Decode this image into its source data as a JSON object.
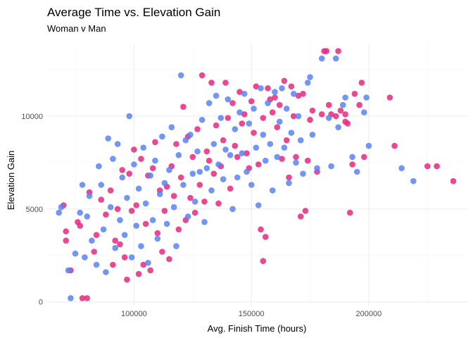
{
  "chart_data": {
    "type": "scatter",
    "title": "Average Time vs. Elevation Gain",
    "subtitle": "Woman v Man",
    "xlabel": "Avg. Finish Time (hours)",
    "ylabel": "Elevation Gain",
    "xlim": [
      63000,
      242000
    ],
    "ylim": [
      -200,
      13900
    ],
    "x_ticks": [
      100000,
      150000,
      200000
    ],
    "x_tick_labels": [
      "100000",
      "150000",
      "200000"
    ],
    "y_ticks": [
      0,
      5000,
      10000
    ],
    "y_tick_labels": [
      "0",
      "5000",
      "10000"
    ],
    "grid": true,
    "legend": "none",
    "colors": {
      "Woman": "#e8287f",
      "Man": "#5b84f5"
    },
    "series": [
      {
        "name": "",
        "color": "#e8287f",
        "points": [
          [
            70000,
            5200
          ],
          [
            71000,
            3800
          ],
          [
            71000,
            3300
          ],
          [
            73000,
            1700
          ],
          [
            76000,
            4300
          ],
          [
            77000,
            4100
          ],
          [
            78000,
            200
          ],
          [
            80000,
            200
          ],
          [
            81000,
            5900
          ],
          [
            83000,
            2700
          ],
          [
            84000,
            3600
          ],
          [
            86000,
            5500
          ],
          [
            88000,
            4700
          ],
          [
            90000,
            6000
          ],
          [
            91000,
            2000
          ],
          [
            92000,
            3300
          ],
          [
            93000,
            5000
          ],
          [
            94000,
            3100
          ],
          [
            95000,
            7100
          ],
          [
            96000,
            2400
          ],
          [
            97000,
            1200
          ],
          [
            98000,
            6900
          ],
          [
            99000,
            4900
          ],
          [
            100000,
            8200
          ],
          [
            101000,
            5200
          ],
          [
            102000,
            1500
          ],
          [
            103000,
            7700
          ],
          [
            104000,
            2000
          ],
          [
            105000,
            4200
          ],
          [
            106000,
            6800
          ],
          [
            107000,
            1700
          ],
          [
            108000,
            7200
          ],
          [
            109000,
            8600
          ],
          [
            110000,
            3700
          ],
          [
            111000,
            6000
          ],
          [
            112000,
            2700
          ],
          [
            113000,
            4900
          ],
          [
            114000,
            6200
          ],
          [
            115000,
            2300
          ],
          [
            116000,
            7300
          ],
          [
            117000,
            5700
          ],
          [
            118000,
            8500
          ],
          [
            119000,
            3900
          ],
          [
            120000,
            6700
          ],
          [
            121000,
            10500
          ],
          [
            122000,
            4400
          ],
          [
            123000,
            8900
          ],
          [
            124000,
            5600
          ],
          [
            125000,
            7800
          ],
          [
            126000,
            4800
          ],
          [
            127000,
            9300
          ],
          [
            128000,
            6300
          ],
          [
            129000,
            12200
          ],
          [
            130000,
            5400
          ],
          [
            131000,
            8100
          ],
          [
            132000,
            7600
          ],
          [
            133000,
            11800
          ],
          [
            134000,
            6900
          ],
          [
            135000,
            9500
          ],
          [
            136000,
            5300
          ],
          [
            137000,
            7300
          ],
          [
            138000,
            8700
          ],
          [
            139000,
            11800
          ],
          [
            140000,
            9900
          ],
          [
            141000,
            6100
          ],
          [
            142000,
            10700
          ],
          [
            143000,
            8400
          ],
          [
            144000,
            7800
          ],
          [
            145000,
            11300
          ],
          [
            146000,
            9600
          ],
          [
            147000,
            10100
          ],
          [
            148000,
            8000
          ],
          [
            149000,
            7200
          ],
          [
            150000,
            10800
          ],
          [
            151000,
            9100
          ],
          [
            152000,
            11600
          ],
          [
            153000,
            7400
          ],
          [
            154000,
            3900
          ],
          [
            155000,
            2200
          ],
          [
            155000,
            9900
          ],
          [
            156000,
            3500
          ],
          [
            157000,
            11500
          ],
          [
            158000,
            10900
          ],
          [
            159000,
            10200
          ],
          [
            160000,
            11000
          ],
          [
            161000,
            9400
          ],
          [
            162000,
            10600
          ],
          [
            163000,
            7700
          ],
          [
            164000,
            11900
          ],
          [
            165000,
            8700
          ],
          [
            166000,
            6700
          ],
          [
            167000,
            11600
          ],
          [
            168000,
            10000
          ],
          [
            169000,
            7800
          ],
          [
            170000,
            11100
          ],
          [
            171000,
            4600
          ],
          [
            172000,
            11200
          ],
          [
            173000,
            4900
          ],
          [
            174000,
            7600
          ],
          [
            175000,
            9800
          ],
          [
            176000,
            10300
          ],
          [
            178000,
            7000
          ],
          [
            180000,
            10100
          ],
          [
            181000,
            13500
          ],
          [
            182000,
            13500
          ],
          [
            183000,
            10600
          ],
          [
            184000,
            10100
          ],
          [
            186000,
            10000
          ],
          [
            187000,
            13500
          ],
          [
            188000,
            10300
          ],
          [
            190000,
            10100
          ],
          [
            191000,
            9600
          ],
          [
            192000,
            4800
          ],
          [
            193000,
            7400
          ],
          [
            194000,
            11200
          ],
          [
            196000,
            10600
          ],
          [
            198000,
            7800
          ],
          [
            209000,
            11000
          ],
          [
            211000,
            8400
          ],
          [
            225000,
            7300
          ],
          [
            229000,
            7300
          ],
          [
            236000,
            6500
          ],
          [
            190000,
            9700
          ],
          [
            197000,
            11800
          ]
        ]
      },
      {
        "name": "",
        "color": "#5b84f5",
        "points": [
          [
            68000,
            4800
          ],
          [
            69000,
            5100
          ],
          [
            72000,
            1700
          ],
          [
            73000,
            200
          ],
          [
            75000,
            2600
          ],
          [
            77000,
            4800
          ],
          [
            78000,
            6300
          ],
          [
            79000,
            2400
          ],
          [
            80000,
            4600
          ],
          [
            81000,
            5700
          ],
          [
            82000,
            3300
          ],
          [
            84000,
            2000
          ],
          [
            85000,
            7300
          ],
          [
            86000,
            6300
          ],
          [
            87000,
            3900
          ],
          [
            88000,
            1600
          ],
          [
            89000,
            8800
          ],
          [
            90000,
            5100
          ],
          [
            91000,
            7700
          ],
          [
            92000,
            2900
          ],
          [
            93000,
            8500
          ],
          [
            94000,
            4400
          ],
          [
            95000,
            6700
          ],
          [
            96000,
            3600
          ],
          [
            97000,
            5600
          ],
          [
            98000,
            10000
          ],
          [
            99000,
            2400
          ],
          [
            100000,
            7400
          ],
          [
            101000,
            4100
          ],
          [
            102000,
            6100
          ],
          [
            103000,
            3000
          ],
          [
            104000,
            8300
          ],
          [
            105000,
            5300
          ],
          [
            106000,
            2100
          ],
          [
            107000,
            6800
          ],
          [
            108000,
            4400
          ],
          [
            109000,
            7600
          ],
          [
            110000,
            3400
          ],
          [
            111000,
            5800
          ],
          [
            112000,
            8900
          ],
          [
            113000,
            6400
          ],
          [
            114000,
            4200
          ],
          [
            115000,
            7100
          ],
          [
            116000,
            9400
          ],
          [
            117000,
            5100
          ],
          [
            118000,
            3000
          ],
          [
            119000,
            7900
          ],
          [
            120000,
            12200
          ],
          [
            121000,
            6300
          ],
          [
            122000,
            8700
          ],
          [
            123000,
            4600
          ],
          [
            124000,
            9000
          ],
          [
            125000,
            6900
          ],
          [
            126000,
            5400
          ],
          [
            127000,
            8100
          ],
          [
            128000,
            7000
          ],
          [
            129000,
            9800
          ],
          [
            130000,
            4300
          ],
          [
            131000,
            7200
          ],
          [
            132000,
            10700
          ],
          [
            133000,
            6000
          ],
          [
            134000,
            8500
          ],
          [
            135000,
            11100
          ],
          [
            136000,
            7400
          ],
          [
            137000,
            9900
          ],
          [
            138000,
            6600
          ],
          [
            139000,
            8200
          ],
          [
            140000,
            10900
          ],
          [
            141000,
            7900
          ],
          [
            142000,
            5000
          ],
          [
            143000,
            9300
          ],
          [
            144000,
            6700
          ],
          [
            145000,
            10200
          ],
          [
            146000,
            8000
          ],
          [
            147000,
            11200
          ],
          [
            148000,
            7000
          ],
          [
            149000,
            9600
          ],
          [
            150000,
            6300
          ],
          [
            151000,
            10400
          ],
          [
            152000,
            8300
          ],
          [
            153000,
            5200
          ],
          [
            154000,
            11500
          ],
          [
            155000,
            9000
          ],
          [
            156000,
            7600
          ],
          [
            157000,
            10700
          ],
          [
            158000,
            8500
          ],
          [
            159000,
            6000
          ],
          [
            160000,
            11300
          ],
          [
            161000,
            7800
          ],
          [
            162000,
            9700
          ],
          [
            163000,
            11500
          ],
          [
            164000,
            8300
          ],
          [
            165000,
            10400
          ],
          [
            166000,
            6400
          ],
          [
            167000,
            9100
          ],
          [
            168000,
            11200
          ],
          [
            169000,
            7500
          ],
          [
            170000,
            10000
          ],
          [
            171000,
            8700
          ],
          [
            172000,
            6900
          ],
          [
            174000,
            11800
          ],
          [
            175000,
            12100
          ],
          [
            176000,
            9000
          ],
          [
            178000,
            7200
          ],
          [
            180000,
            13100
          ],
          [
            183000,
            9900
          ],
          [
            184000,
            7300
          ],
          [
            186000,
            13100
          ],
          [
            187000,
            9400
          ],
          [
            189000,
            10600
          ],
          [
            190000,
            11000
          ],
          [
            193000,
            7800
          ],
          [
            195000,
            7000
          ],
          [
            198000,
            10200
          ],
          [
            199000,
            11000
          ],
          [
            200000,
            8400
          ],
          [
            214000,
            7200
          ],
          [
            219000,
            6500
          ]
        ]
      }
    ]
  }
}
